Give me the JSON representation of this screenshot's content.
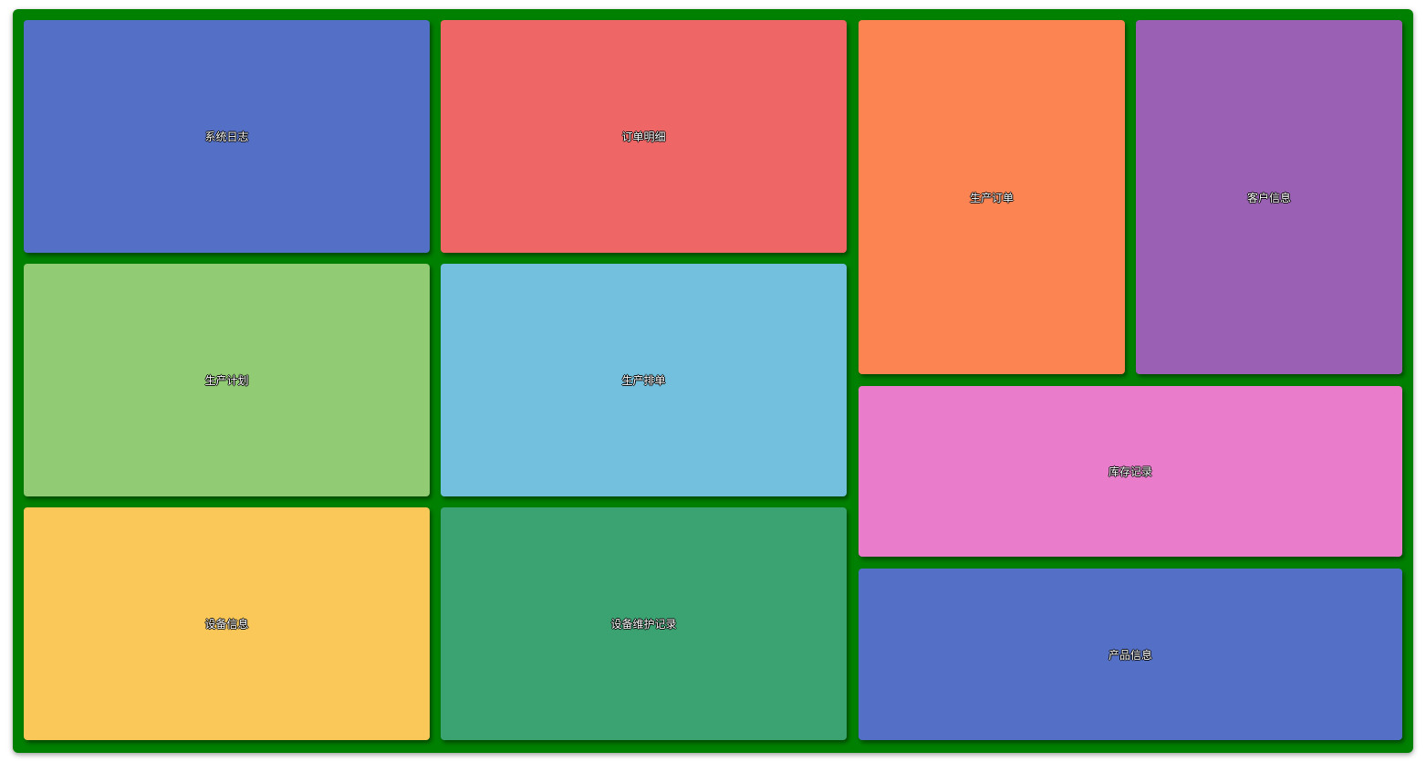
{
  "tiles": [
    {
      "label": "系统日志",
      "color": "#5470c6"
    },
    {
      "label": "订单明细",
      "color": "#ee6666"
    },
    {
      "label": "生产订单",
      "color": "#fc8452"
    },
    {
      "label": "客户信息",
      "color": "#9a60b4"
    },
    {
      "label": "生产计划",
      "color": "#91cc75"
    },
    {
      "label": "生产排单",
      "color": "#73c0de"
    },
    {
      "label": "库存记录",
      "color": "#ea7ccc"
    },
    {
      "label": "设备信息",
      "color": "#fac858"
    },
    {
      "label": "设备维护记录",
      "color": "#3ba272"
    },
    {
      "label": "产品信息",
      "color": "#5470c6"
    }
  ]
}
